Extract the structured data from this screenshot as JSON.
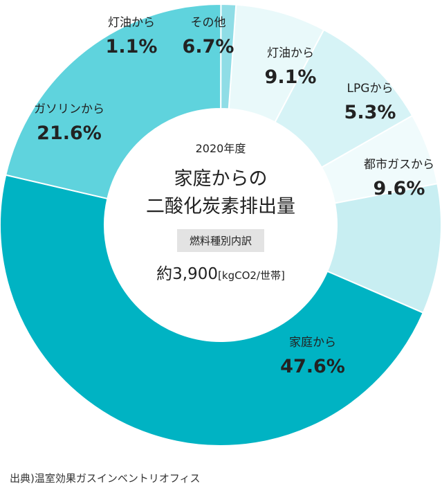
{
  "chart_data": {
    "type": "pie",
    "center": {
      "year": "2020年度",
      "title_line1": "家庭からの",
      "title_line2": "二酸化炭素排出量",
      "badge": "燃料種別内訳",
      "total_value": "約3,900",
      "total_unit": "[kgCO2/世帯]"
    },
    "slices": [
      {
        "name": "その他",
        "value": 6.7,
        "label": "6.7%",
        "color": "#e9f9fa"
      },
      {
        "name": "灯油から",
        "value": 9.1,
        "label": "9.1%",
        "color": "#d6f3f6"
      },
      {
        "name": "LPGから",
        "value": 5.3,
        "label": "5.3%",
        "color": "#f0fbfc"
      },
      {
        "name": "都市ガスから",
        "value": 9.6,
        "label": "9.6%",
        "color": "#c8eef2"
      },
      {
        "name": "家庭から",
        "value": 47.6,
        "label": "47.6%",
        "color": "#00b3c3"
      },
      {
        "name": "ガソリンから",
        "value": 21.6,
        "label": "21.6%",
        "color": "#5fd3dd"
      },
      {
        "name": "灯油から",
        "value": 1.1,
        "label": "1.1%",
        "color": "#8fdde6"
      }
    ]
  },
  "footer": {
    "source": "出典)温室効果ガスインベントリオフィス"
  }
}
